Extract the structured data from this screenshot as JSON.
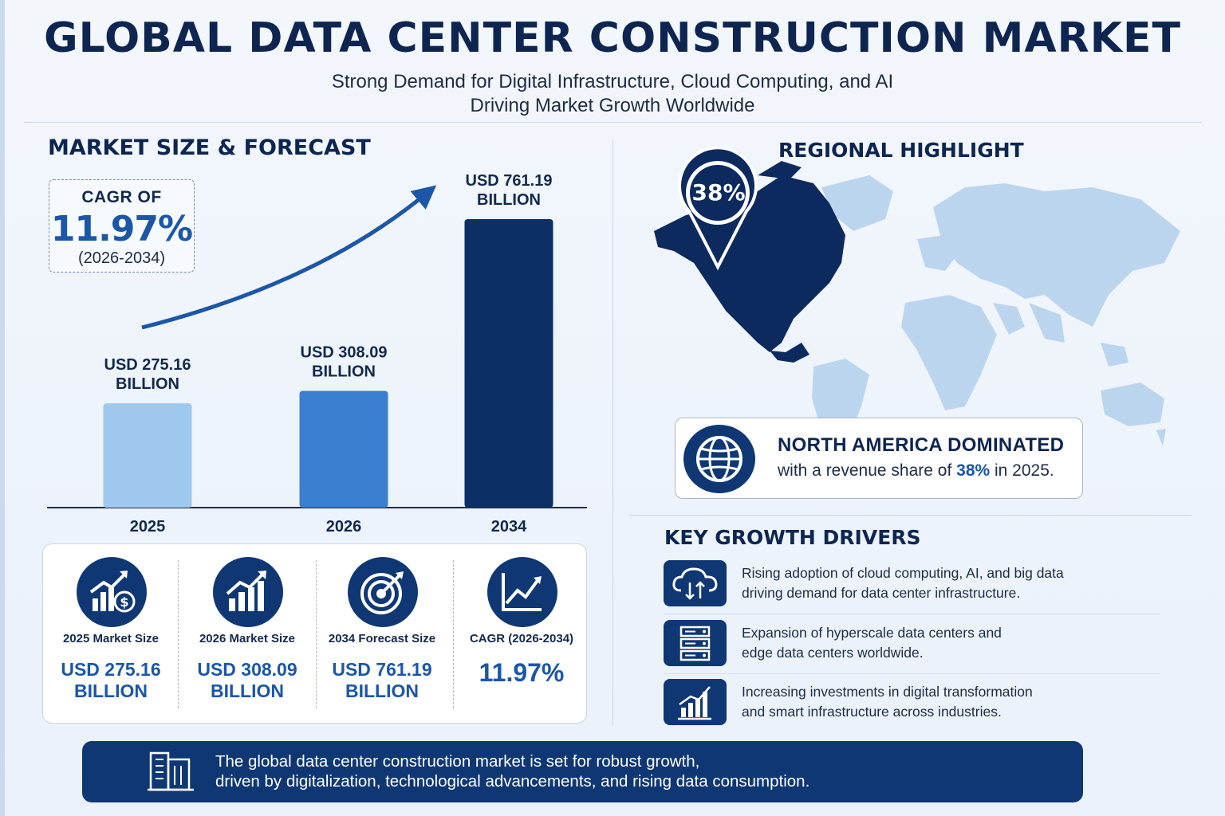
{
  "header": {
    "title": "GLOBAL DATA CENTER CONSTRUCTION MARKET",
    "subtitle_line1": "Strong Demand for Digital Infrastructure, Cloud Computing, and AI",
    "subtitle_line2": "Driving Market Growth Worldwide"
  },
  "market": {
    "section_title": "MARKET SIZE & FORECAST",
    "cagr_label": "CAGR OF",
    "cagr_value": "11.97%",
    "cagr_period": "(2026-2034)"
  },
  "chart_data": {
    "type": "bar",
    "categories": [
      "2025",
      "2026",
      "2034"
    ],
    "values": [
      275.16,
      308.09,
      761.19
    ],
    "data_labels": [
      [
        "USD 275.16",
        "BILLION"
      ],
      [
        "USD 308.09",
        "BILLION"
      ],
      [
        "USD 761.19",
        "BILLION"
      ]
    ],
    "colors": [
      "#9ec8ee",
      "#3a7fd0",
      "#0c2f66"
    ],
    "title": "",
    "xlabel": "",
    "ylabel": "",
    "grid": false,
    "trend_arrow": true
  },
  "stats": [
    {
      "icon": "money-growth-icon",
      "label": "2025 Market Size",
      "value_line1": "USD 275.16",
      "value_line2": "BILLION"
    },
    {
      "icon": "bar-growth-icon",
      "label": "2026 Market Size",
      "value_line1": "USD 308.09",
      "value_line2": "BILLION"
    },
    {
      "icon": "target-icon",
      "label": "2034 Forecast Size",
      "value_line1": "USD 761.19",
      "value_line2": "BILLION"
    },
    {
      "icon": "line-chart-icon",
      "label": "CAGR (2026-2034)",
      "value_line1": "11.97%",
      "value_line2": ""
    }
  ],
  "region": {
    "section_title": "REGIONAL HIGHLIGHT",
    "pin_value": "38%",
    "card_title": "NORTH AMERICA DOMINATED",
    "card_text_before": "with a revenue share of ",
    "card_text_highlight": "38%",
    "card_text_after": " in 2025."
  },
  "drivers": {
    "section_title": "KEY GROWTH DRIVERS",
    "items": [
      {
        "icon": "cloud-icon",
        "line1": "Rising adoption of cloud computing, AI, and big data",
        "line2": "driving demand for data center infrastructure."
      },
      {
        "icon": "server-icon",
        "line1": "Expansion of hyperscale data centers and",
        "line2": "edge data centers worldwide."
      },
      {
        "icon": "growth-chart-icon",
        "line1": "Increasing investments in digital transformation",
        "line2": "and smart infrastructure across industries."
      }
    ]
  },
  "footer": {
    "icon": "building-icon",
    "line1": "The global data center construction market is set for robust growth,",
    "line2": "driven by digitalization, technological advancements, and rising data consumption."
  },
  "colors": {
    "navy": "#0f3774",
    "accent_blue": "#1b56a8",
    "light_blue_map": "#bcd5ef",
    "dark_map": "#0c2a5e"
  }
}
